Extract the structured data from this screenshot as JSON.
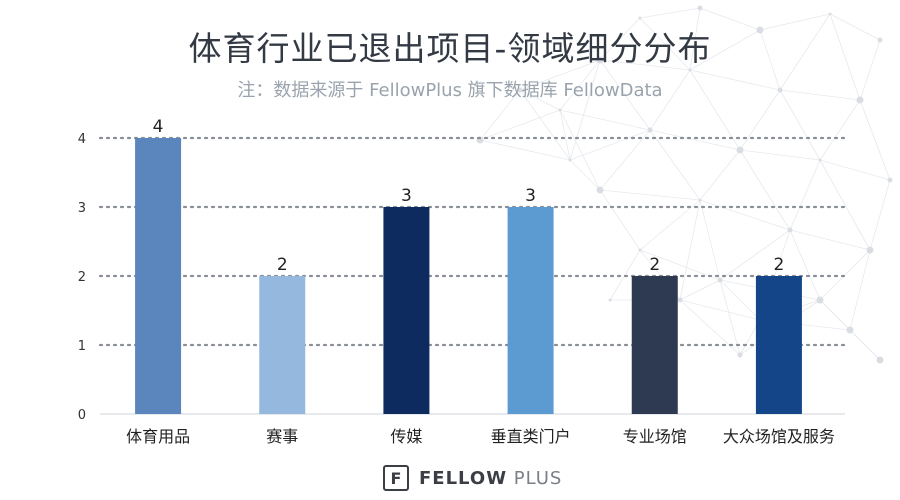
{
  "chart_data": {
    "type": "bar",
    "title": "体育行业已退出项目-领域细分分布",
    "subtitle": "注：数据来源于 FellowPlus 旗下数据库 FellowData",
    "categories": [
      "体育用品",
      "赛事",
      "传媒",
      "垂直类门户",
      "专业场馆",
      "大众场馆及服务"
    ],
    "values": [
      4,
      2,
      3,
      3,
      2,
      2
    ],
    "bar_colors": [
      "#5b86bd",
      "#94b8de",
      "#0d2b5e",
      "#5c9bd2",
      "#2d3a52",
      "#144589"
    ],
    "ylim": [
      0,
      4
    ],
    "yticks": [
      "0",
      "1",
      "2",
      "3",
      "4"
    ],
    "grid": "dotted-horizontal",
    "data_labels": true
  },
  "footer": {
    "logo_glyph": "F",
    "brand_strong": "FELLOW",
    "brand_light": " PLUS"
  }
}
